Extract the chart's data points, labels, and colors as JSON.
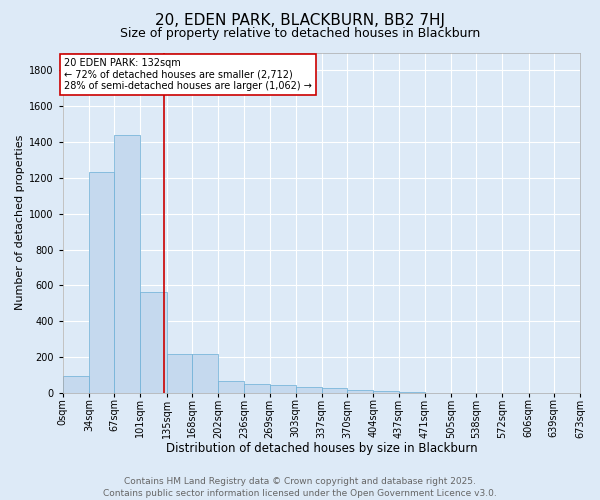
{
  "title": "20, EDEN PARK, BLACKBURN, BB2 7HJ",
  "subtitle": "Size of property relative to detached houses in Blackburn",
  "xlabel": "Distribution of detached houses by size in Blackburn",
  "ylabel": "Number of detached properties",
  "bar_edges": [
    0,
    34,
    67,
    101,
    135,
    168,
    202,
    236,
    269,
    303,
    337,
    370,
    404,
    437,
    471,
    505,
    538,
    572,
    606,
    639,
    673
  ],
  "bar_values": [
    95,
    1230,
    1440,
    560,
    215,
    215,
    65,
    50,
    45,
    30,
    25,
    15,
    10,
    5,
    0,
    0,
    0,
    0,
    0,
    0
  ],
  "bar_color": "#c5d9ee",
  "bar_edge_color": "#6aaed6",
  "vline_x": 132,
  "vline_color": "#cc0000",
  "annotation_text": "20 EDEN PARK: 132sqm\n← 72% of detached houses are smaller (2,712)\n28% of semi-detached houses are larger (1,062) →",
  "annotation_box_color": "#cc0000",
  "annotation_text_color": "#000000",
  "ylim": [
    0,
    1900
  ],
  "yticks": [
    0,
    200,
    400,
    600,
    800,
    1000,
    1200,
    1400,
    1600,
    1800
  ],
  "tick_labels": [
    "0sqm",
    "34sqm",
    "67sqm",
    "101sqm",
    "135sqm",
    "168sqm",
    "202sqm",
    "236sqm",
    "269sqm",
    "303sqm",
    "337sqm",
    "370sqm",
    "404sqm",
    "437sqm",
    "471sqm",
    "505sqm",
    "538sqm",
    "572sqm",
    "606sqm",
    "639sqm",
    "673sqm"
  ],
  "footer_line1": "Contains HM Land Registry data © Crown copyright and database right 2025.",
  "footer_line2": "Contains public sector information licensed under the Open Government Licence v3.0.",
  "bg_color": "#ddeaf7",
  "plot_bg_color": "#ddeaf7",
  "grid_color": "#ffffff",
  "title_fontsize": 11,
  "subtitle_fontsize": 9,
  "xlabel_fontsize": 8.5,
  "ylabel_fontsize": 8,
  "tick_fontsize": 7,
  "footer_fontsize": 6.5,
  "annotation_fontsize": 7
}
